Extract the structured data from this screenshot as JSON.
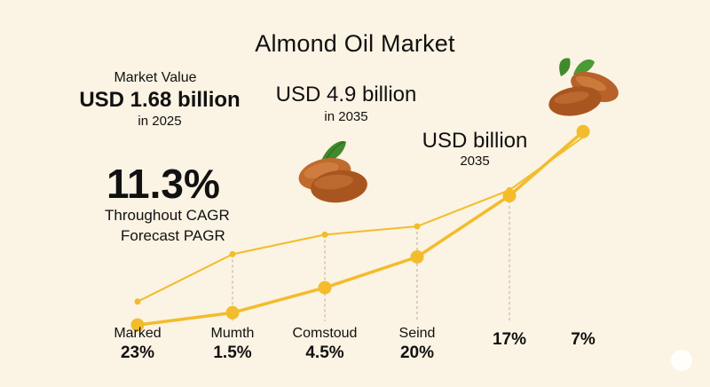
{
  "title": "Almond Oil Market",
  "market_value": {
    "label": "Market Value",
    "value": "USD 1.68 billion",
    "year": "in 2025"
  },
  "forecast_value": {
    "value": "USD 4.9 billion",
    "year": "in 2035"
  },
  "billion_label": {
    "value": "USD billion",
    "year": "2035"
  },
  "growth": {
    "rate": "11.3%",
    "line1": "Throughout CAGR",
    "line2": "Forecast PAGR"
  },
  "colors": {
    "background": "#fbf3e3",
    "line": "#f2bc2c",
    "guide": "#b8ab97",
    "almond": "#b8622a",
    "leaf": "#3f8a2c"
  },
  "icons": [
    "almond-icon",
    "almond-icon",
    "almond-icon"
  ],
  "chart_data": {
    "type": "line",
    "categories": [
      "Marked",
      "Mumth",
      "Comstoud",
      "Seind",
      "17%",
      "7%"
    ],
    "category_values": [
      "23%",
      "1.5%",
      "4.5%",
      "20%",
      "",
      ""
    ],
    "series": [
      {
        "values": [
          1.68,
          1.9,
          2.35,
          2.9,
          4.0,
          5.15
        ]
      },
      {
        "values": [
          2.1,
          2.95,
          3.3,
          3.45,
          4.1,
          5.05
        ]
      }
    ],
    "ylim": [
      1.3,
      5.6
    ],
    "grid": false,
    "legend": "none"
  }
}
